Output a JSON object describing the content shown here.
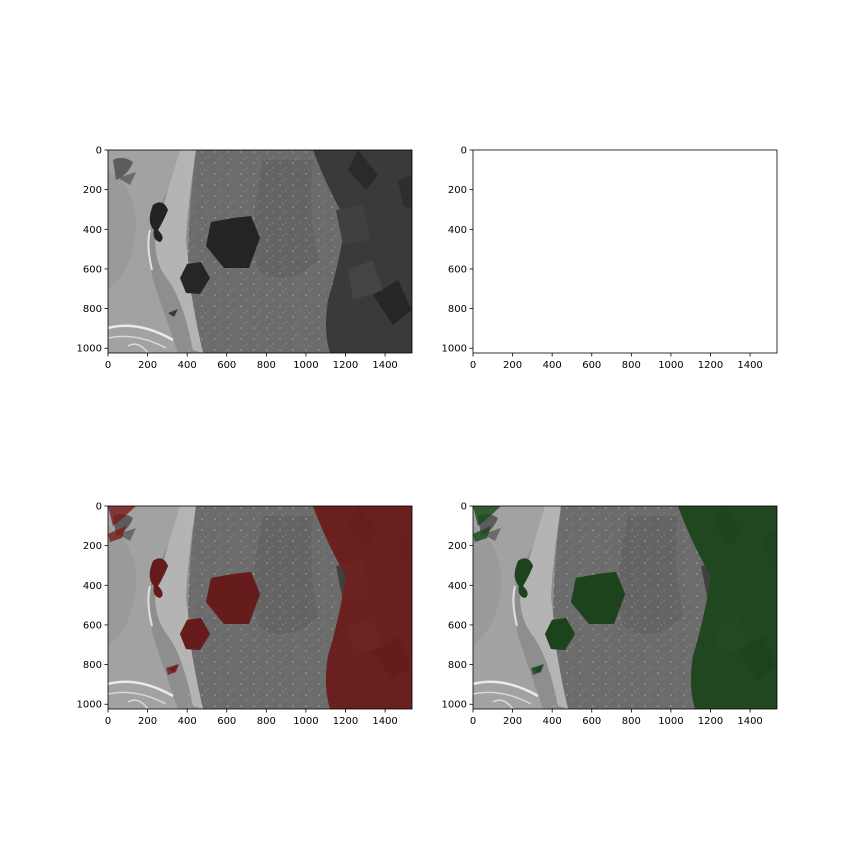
{
  "figure": {
    "image_extent": {
      "width": 1536,
      "height": 1024
    },
    "x_ticks": [
      "0",
      "200",
      "400",
      "600",
      "800",
      "1000",
      "1200",
      "1400"
    ],
    "y_ticks": [
      "0",
      "200",
      "400",
      "600",
      "800",
      "1000"
    ],
    "panels": [
      {
        "id": "original",
        "mode": "original"
      },
      {
        "id": "masked",
        "mode": "masked"
      },
      {
        "id": "overlay-red",
        "mode": "overlay",
        "overlay_color": "#7a1a1a"
      },
      {
        "id": "overlay-green",
        "mode": "overlay",
        "overlay_color": "#1c4a1c"
      }
    ]
  }
}
